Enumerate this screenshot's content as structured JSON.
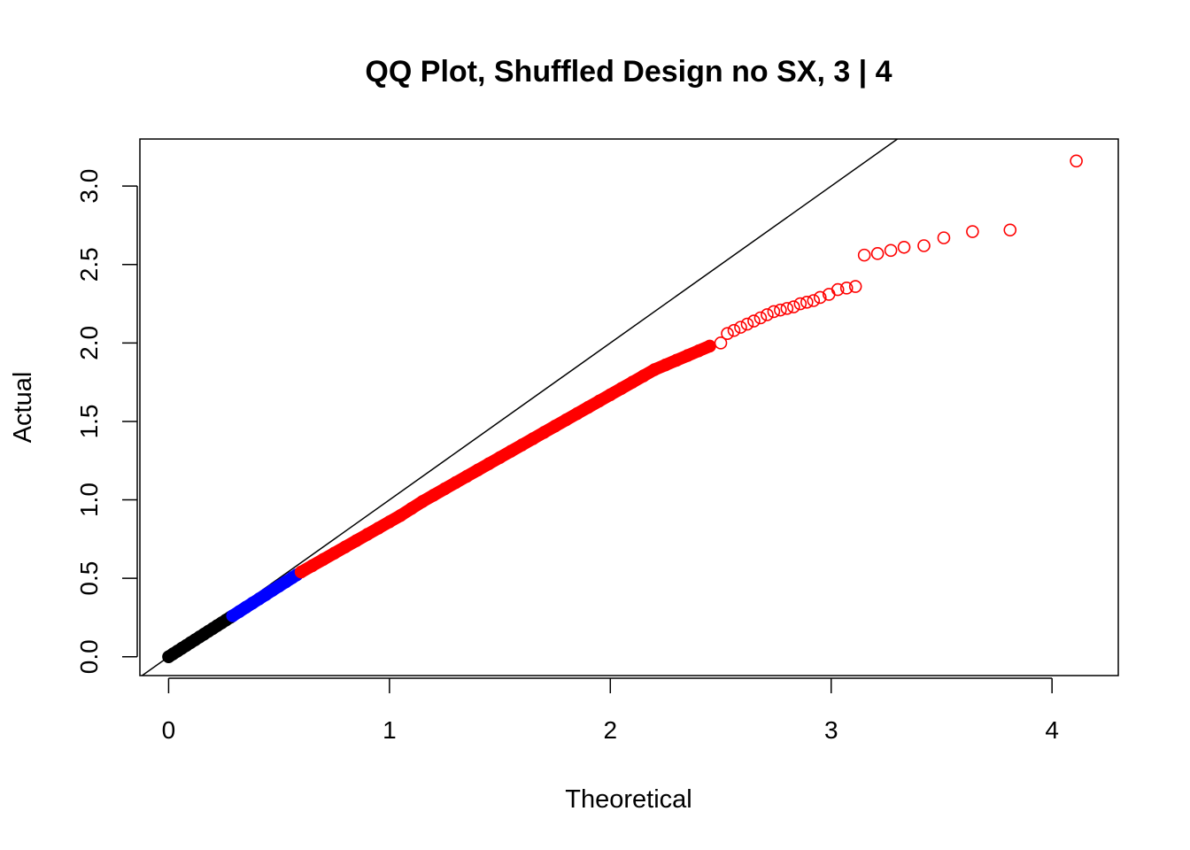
{
  "chart_data": {
    "type": "scatter",
    "title": "QQ Plot, Shuffled Design no SX, 3 | 4",
    "xlabel": "Theoretical",
    "ylabel": "Actual",
    "xlim": [
      -0.13,
      4.3
    ],
    "ylim": [
      -0.12,
      3.3
    ],
    "x_ticks": [
      0,
      1,
      2,
      3,
      4
    ],
    "y_ticks": [
      0.0,
      0.5,
      1.0,
      1.5,
      2.0,
      2.5,
      3.0
    ],
    "x_tick_labels": [
      "0",
      "1",
      "2",
      "3",
      "4"
    ],
    "y_tick_labels": [
      "0.0",
      "0.5",
      "1.0",
      "1.5",
      "2.0",
      "2.5",
      "3.0"
    ],
    "grid": false,
    "reference_line": {
      "intercept": 0,
      "slope": 1,
      "color": "#000000"
    },
    "series": [
      {
        "color": "#000000",
        "filled": true,
        "x": [
          0.0,
          0.02,
          0.04,
          0.06,
          0.08,
          0.1,
          0.12,
          0.14,
          0.16,
          0.18,
          0.2,
          0.22,
          0.24,
          0.26,
          0.28
        ],
        "y": [
          0.0,
          0.018,
          0.036,
          0.054,
          0.072,
          0.09,
          0.108,
          0.126,
          0.144,
          0.162,
          0.18,
          0.198,
          0.216,
          0.234,
          0.252
        ]
      },
      {
        "color": "#0000ff",
        "filled": true,
        "x": [
          0.29,
          0.32,
          0.35,
          0.38,
          0.41,
          0.44,
          0.47,
          0.5,
          0.53,
          0.56,
          0.58
        ],
        "y": [
          0.261,
          0.288,
          0.315,
          0.342,
          0.369,
          0.396,
          0.423,
          0.45,
          0.477,
          0.504,
          0.522
        ]
      },
      {
        "color": "#ff0000",
        "filled": true,
        "x": [
          0.6,
          0.65,
          0.7,
          0.75,
          0.8,
          0.85,
          0.9,
          0.95,
          1.0,
          1.05,
          1.1,
          1.15,
          1.2,
          1.25,
          1.3,
          1.35,
          1.4,
          1.45,
          1.5,
          1.55,
          1.6,
          1.65,
          1.7,
          1.75,
          1.8,
          1.85,
          1.9,
          1.95,
          2.0,
          2.05,
          2.1,
          2.15,
          2.2,
          2.25,
          2.3,
          2.35,
          2.4,
          2.45
        ],
        "y": [
          0.54,
          0.58,
          0.62,
          0.66,
          0.7,
          0.74,
          0.78,
          0.82,
          0.86,
          0.9,
          0.945,
          0.99,
          1.03,
          1.07,
          1.11,
          1.15,
          1.19,
          1.23,
          1.27,
          1.31,
          1.35,
          1.39,
          1.43,
          1.47,
          1.51,
          1.55,
          1.59,
          1.63,
          1.67,
          1.71,
          1.75,
          1.79,
          1.83,
          1.86,
          1.89,
          1.92,
          1.95,
          1.98
        ]
      },
      {
        "color": "#ff0000",
        "filled": false,
        "x": [
          2.5,
          2.53,
          2.56,
          2.59,
          2.62,
          2.65,
          2.68,
          2.71,
          2.74,
          2.77,
          2.8,
          2.83,
          2.86,
          2.89,
          2.92,
          2.95,
          2.99,
          3.03,
          3.07,
          3.11,
          3.15,
          3.21,
          3.27,
          3.33,
          3.42,
          3.51,
          3.64,
          3.81,
          4.11
        ],
        "y": [
          2.0,
          2.06,
          2.08,
          2.1,
          2.12,
          2.14,
          2.16,
          2.18,
          2.2,
          2.21,
          2.22,
          2.23,
          2.25,
          2.26,
          2.27,
          2.29,
          2.31,
          2.34,
          2.35,
          2.36,
          2.56,
          2.57,
          2.59,
          2.61,
          2.62,
          2.67,
          2.71,
          2.72,
          3.16
        ]
      }
    ]
  }
}
